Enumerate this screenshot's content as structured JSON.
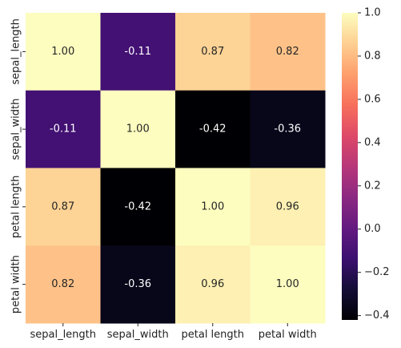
{
  "chart_data": {
    "type": "heatmap",
    "title": "",
    "xlabel": "",
    "ylabel": "",
    "row_labels": [
      "sepal_length",
      "sepal_width",
      "petal length",
      "petal width"
    ],
    "col_labels": [
      "sepal_length",
      "sepal_width",
      "petal length",
      "petal width"
    ],
    "values": [
      [
        1.0,
        -0.11,
        0.87,
        0.82
      ],
      [
        -0.11,
        1.0,
        -0.42,
        -0.36
      ],
      [
        0.87,
        -0.42,
        1.0,
        0.96
      ],
      [
        0.82,
        -0.36,
        0.96,
        1.0
      ]
    ],
    "annotations": [
      [
        "1.00",
        "-0.11",
        "0.87",
        "0.82"
      ],
      [
        "-0.11",
        "1.00",
        "-0.42",
        "-0.36"
      ],
      [
        "0.87",
        "-0.42",
        "1.00",
        "0.96"
      ],
      [
        "0.82",
        "-0.36",
        "0.96",
        "1.00"
      ]
    ],
    "colormap": "magma",
    "value_range": [
      -0.42,
      1.0
    ],
    "colorbar": {
      "ticks": [
        -0.4,
        -0.2,
        0.0,
        0.2,
        0.4,
        0.6,
        0.8,
        1.0
      ],
      "tick_labels": [
        "−0.4",
        "−0.2",
        "0.0",
        "0.2",
        "0.4",
        "0.6",
        "0.8",
        "1.0"
      ]
    }
  }
}
